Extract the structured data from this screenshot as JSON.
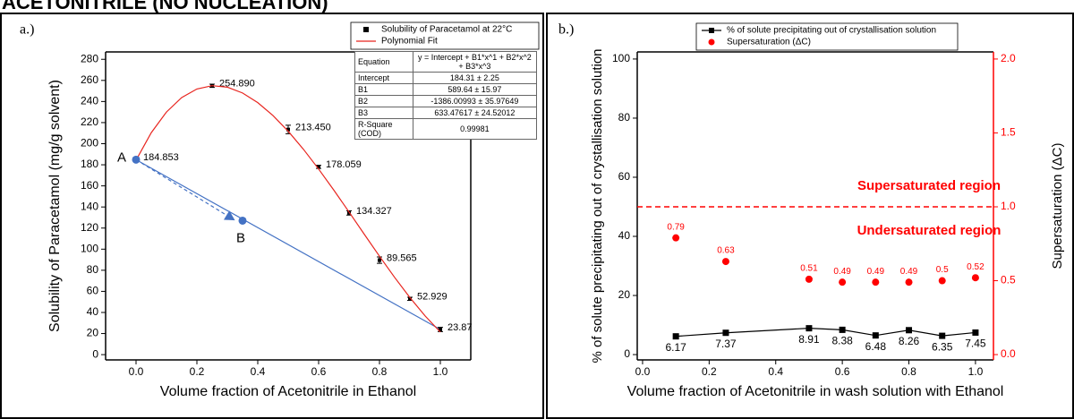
{
  "page_title": "ACETONITRILE (NO NUCLEATION)",
  "chart_data": [
    {
      "type": "scatter",
      "panel_label": "a.)",
      "x_label": "Volume fraction of Acetonitrile in Ethanol",
      "y_label": "Solubility of Paracetamol (mg/g solvent)",
      "xlim": [
        -0.1,
        1.1
      ],
      "xticks": [
        {
          "value": 0,
          "label": "0.0"
        },
        0.2,
        0.4,
        0.6,
        0.8,
        {
          "value": 1,
          "label": "1.0"
        }
      ],
      "ylim": [
        -5,
        287
      ],
      "yticks": [
        0,
        20,
        40,
        60,
        80,
        100,
        120,
        140,
        160,
        180,
        200,
        220,
        240,
        260,
        280
      ],
      "series": [
        {
          "name": "Solubility of Paracetamol at 22°C",
          "color": "#000000",
          "marker": "square",
          "line": false,
          "x": [
            0,
            0.25,
            0.5,
            0.6,
            0.7,
            0.8,
            0.9,
            1.0
          ],
          "values": [
            184.853,
            254.89,
            213.45,
            178.059,
            134.327,
            89.565,
            52.929,
            23.87
          ],
          "value_labels": [
            "184.853",
            "254.890",
            "213.450",
            "178.059",
            "134.327",
            "89.565",
            "52.929",
            "23.87"
          ],
          "errors": [
            1.5,
            1.5,
            4,
            1.5,
            2,
            3,
            1.5,
            2
          ]
        },
        {
          "name": "Polynomial Fit",
          "color": "#e8251f",
          "marker": "none",
          "line": true,
          "x": [
            0,
            0.05,
            0.1,
            0.15,
            0.2,
            0.25,
            0.3,
            0.35,
            0.4,
            0.45,
            0.5,
            0.55,
            0.6,
            0.65,
            0.7,
            0.75,
            0.8,
            0.85,
            0.9,
            0.95,
            1.0
          ],
          "values": [
            184.31,
            210.41,
            230.05,
            243.71,
            251.87,
            254.99,
            253.57,
            248.06,
            238.95,
            226.71,
            211.81,
            194.74,
            175.96,
            155.96,
            135.2,
            114.16,
            93.32,
            73.15,
            54.12,
            36.72,
            21.42
          ]
        }
      ],
      "guides": [
        {
          "x": [
            0,
            1.0
          ],
          "values": [
            184.853,
            23.87
          ],
          "color": "#4472c4",
          "dashed": false,
          "arrow": false
        },
        {
          "x": [
            0,
            0.31
          ],
          "values": [
            184.853,
            130
          ],
          "color": "#4472c4",
          "dashed": true,
          "arrow": true
        }
      ],
      "points": [
        {
          "label": "A",
          "x": 0,
          "y": 184.853,
          "color": "#4472c4"
        },
        {
          "label": "B",
          "x": 0.35,
          "y": 127,
          "color": "#4472c4"
        }
      ],
      "legend": "upper right",
      "fit_table": {
        "header": [
          "Equation",
          "y = Intercept + B1*x^1 + B2*x^2 + B3*x^3"
        ],
        "rows": [
          [
            "Intercept",
            "184.31 ± 2.25"
          ],
          [
            "B1",
            "589.64 ± 15.97"
          ],
          [
            "B2",
            "-1386.00993 ± 35.97649"
          ],
          [
            "B3",
            "633.47617 ± 24.52012"
          ],
          [
            "R-Square (COD)",
            "0.99981"
          ]
        ]
      }
    },
    {
      "type": "line",
      "panel_label": "b.)",
      "x_label": "Volume fraction of Acetonitrile in wash solution with Ethanol",
      "y_label": "% of solute precipitating out of crystallisation solution",
      "y2_label": "Supersaturation (ΔC)",
      "y2_color": "#ff0000",
      "xlim": [
        -0.016,
        1.054
      ],
      "xticks": [
        {
          "value": 0,
          "label": "0.0"
        },
        0.2,
        0.4,
        0.6,
        0.8,
        {
          "value": 1,
          "label": "1.0"
        }
      ],
      "ylim": [
        -1.8,
        102.4
      ],
      "yticks": [
        0,
        20,
        40,
        60,
        80,
        100
      ],
      "y2lim": [
        -0.036,
        2.048
      ],
      "y2ticks": [
        {
          "value": 0,
          "label": "0.0"
        },
        0.5,
        {
          "value": 1,
          "label": "1.0"
        },
        1.5,
        {
          "value": 2,
          "label": "2.0"
        }
      ],
      "series": [
        {
          "name": "% of solute precipitating out of crystallisation solution",
          "color": "#000000",
          "marker": "square",
          "line": true,
          "x": [
            0.1,
            0.25,
            0.5,
            0.6,
            0.7,
            0.8,
            0.9,
            1.0
          ],
          "values": [
            6.17,
            7.37,
            8.91,
            8.38,
            6.48,
            8.26,
            6.35,
            7.45
          ]
        },
        {
          "name": "Supersaturation (ΔC)",
          "color": "#ff0000",
          "marker": "circle",
          "line": false,
          "axis": "y2",
          "x": [
            0.1,
            0.25,
            0.5,
            0.6,
            0.7,
            0.8,
            0.9,
            1.0
          ],
          "values": [
            0.79,
            0.63,
            0.51,
            0.49,
            0.49,
            0.49,
            0.5,
            0.52
          ]
        }
      ],
      "reference_lines": [
        {
          "axis": "y2",
          "value": 1,
          "color": "#ff0000",
          "dashed": true,
          "above_text": "Supersaturated region",
          "below_text": "Undersaturated region"
        }
      ],
      "legend": "upper center"
    }
  ]
}
